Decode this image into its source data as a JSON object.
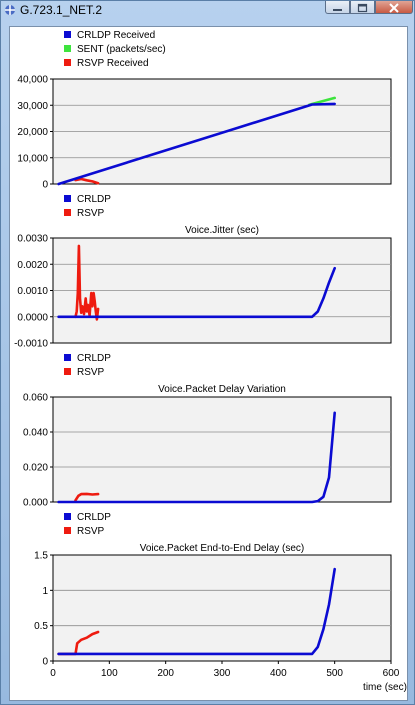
{
  "window": {
    "title": "G.723.1_NET.2",
    "minimize_label": "–",
    "maximize_label": "□",
    "close_label": "x"
  },
  "colors": {
    "crldp": "#0b0bd2",
    "sent": "#3ee43e",
    "rsvp": "#ee1b10",
    "plot_bg": "#f2f2f2",
    "grid": "#8c8c8c"
  },
  "chart_data": [
    {
      "type": "line",
      "title": "",
      "xlabel": "",
      "ylabel": "",
      "xlim": [
        0,
        600
      ],
      "ylim": [
        0,
        40000
      ],
      "y_ticks": [
        "0",
        "10,000",
        "20,000",
        "30,000",
        "40,000"
      ],
      "y_tick_values": [
        0,
        10000,
        20000,
        30000,
        40000
      ],
      "legend": [
        "CRLDP Received",
        "SENT (packets/sec)",
        "RSVP Received"
      ],
      "series": [
        {
          "name": "CRLDP Received",
          "color": "#0b0bd2",
          "x": [
            10,
            460,
            500
          ],
          "y": [
            0,
            30300,
            30500
          ]
        },
        {
          "name": "SENT (packets/sec)",
          "color": "#3ee43e",
          "x": [
            455,
            500
          ],
          "y": [
            30200,
            32800
          ]
        },
        {
          "name": "RSVP Received",
          "color": "#ee1b10",
          "x": [
            40,
            50,
            60,
            70,
            80
          ],
          "y": [
            1500,
            1900,
            1400,
            1000,
            300
          ]
        }
      ]
    },
    {
      "type": "line",
      "title": "Voice.Jitter (sec)",
      "xlabel": "",
      "ylabel": "",
      "xlim": [
        0,
        600
      ],
      "ylim": [
        -0.001,
        0.003
      ],
      "y_ticks": [
        "-0.0010",
        "0.0000",
        "0.0010",
        "0.0020",
        "0.0030"
      ],
      "y_tick_values": [
        -0.001,
        0,
        0.001,
        0.002,
        0.003
      ],
      "legend": [
        "CRLDP",
        "RSVP"
      ],
      "series": [
        {
          "name": "CRLDP",
          "color": "#0b0bd2",
          "x": [
            10,
            460,
            470,
            480,
            490,
            500
          ],
          "y": [
            0,
            0,
            0.0002,
            0.0007,
            0.0013,
            0.00185
          ]
        },
        {
          "name": "RSVP",
          "color": "#ee1b10",
          "x": [
            40,
            42,
            44,
            46,
            48,
            50,
            52,
            55,
            58,
            60,
            62,
            65,
            68,
            70,
            72,
            74,
            76,
            78,
            80
          ],
          "y": [
            0,
            0.0002,
            0.0009,
            0.0027,
            0.0007,
            0.00015,
            0.0004,
            0.0001,
            0.0007,
            0.0002,
            0.00045,
            5e-05,
            0.0009,
            0.0004,
            0.0009,
            0.0006,
            0.0002,
            -0.0001,
            0.0003
          ]
        }
      ]
    },
    {
      "type": "line",
      "title": "Voice.Packet Delay Variation",
      "xlabel": "",
      "ylabel": "",
      "xlim": [
        0,
        600
      ],
      "ylim": [
        0,
        0.06
      ],
      "y_ticks": [
        "0.000",
        "0.020",
        "0.040",
        "0.060"
      ],
      "y_tick_values": [
        0,
        0.02,
        0.04,
        0.06
      ],
      "legend": [
        "CRLDP",
        "RSVP"
      ],
      "series": [
        {
          "name": "CRLDP",
          "color": "#0b0bd2",
          "x": [
            10,
            460,
            470,
            480,
            490,
            500
          ],
          "y": [
            0,
            0,
            0.0005,
            0.003,
            0.014,
            0.051
          ]
        },
        {
          "name": "RSVP",
          "color": "#ee1b10",
          "x": [
            40,
            45,
            50,
            60,
            70,
            80
          ],
          "y": [
            0.001,
            0.0035,
            0.0045,
            0.0046,
            0.0043,
            0.0045
          ]
        }
      ]
    },
    {
      "type": "line",
      "title": "Voice.Packet End-to-End Delay (sec)",
      "xlabel": "time (sec)",
      "ylabel": "",
      "xlim": [
        0,
        600
      ],
      "ylim": [
        0,
        1.5
      ],
      "y_ticks": [
        "0",
        "0.5",
        "1",
        "1.5"
      ],
      "y_tick_values": [
        0,
        0.5,
        1,
        1.5
      ],
      "x_ticks": [
        "0",
        "100",
        "200",
        "300",
        "400",
        "500",
        "600"
      ],
      "x_tick_values": [
        0,
        100,
        200,
        300,
        400,
        500,
        600
      ],
      "legend": [
        "CRLDP",
        "RSVP"
      ],
      "series": [
        {
          "name": "CRLDP",
          "color": "#0b0bd2",
          "x": [
            10,
            460,
            470,
            480,
            490,
            500
          ],
          "y": [
            0.1,
            0.1,
            0.2,
            0.45,
            0.8,
            1.3
          ]
        },
        {
          "name": "RSVP",
          "color": "#ee1b10",
          "x": [
            10,
            40,
            43,
            50,
            60,
            70,
            80
          ],
          "y": [
            0.1,
            0.1,
            0.25,
            0.3,
            0.33,
            0.38,
            0.41
          ]
        }
      ]
    }
  ]
}
